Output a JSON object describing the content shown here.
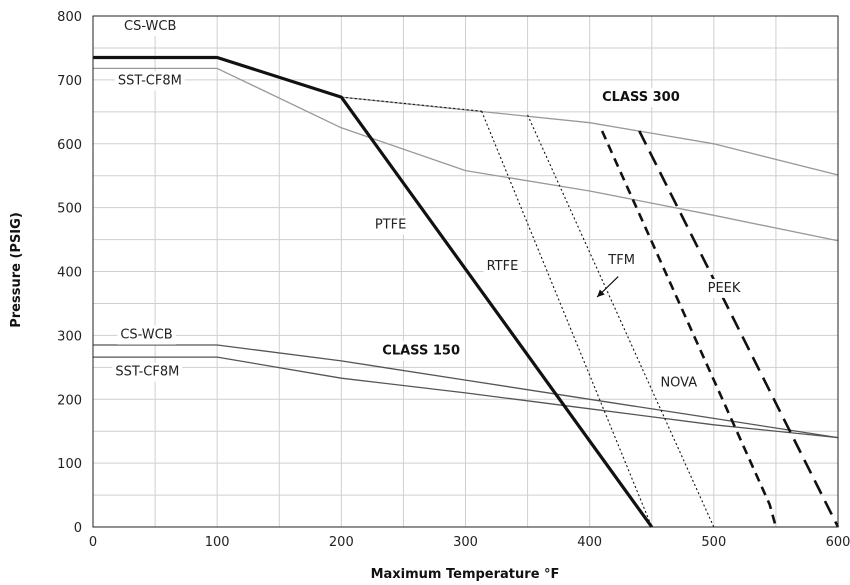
{
  "chart_data": {
    "type": "line",
    "xlabel": "Maximum Temperature °F",
    "ylabel": "Pressure (PSIG)",
    "xlim": [
      0,
      600
    ],
    "ylim": [
      0,
      800
    ],
    "xticks": [
      0,
      100,
      200,
      300,
      400,
      500,
      600
    ],
    "yticks": [
      0,
      100,
      200,
      300,
      400,
      500,
      600,
      700,
      800
    ],
    "grid": true,
    "series": [
      {
        "name": "CS-WCB",
        "group": "CLASS 300",
        "style": "solid-thin",
        "color": "#999999",
        "x": [
          0,
          100,
          200,
          400,
          500,
          600
        ],
        "y": [
          735,
          735,
          673,
          633,
          600,
          551
        ]
      },
      {
        "name": "SST-CF8M",
        "group": "CLASS 300",
        "style": "solid-thin",
        "color": "#999999",
        "x": [
          0,
          100,
          200,
          300,
          400,
          500,
          600
        ],
        "y": [
          718,
          718,
          625,
          558,
          526,
          488,
          448
        ]
      },
      {
        "name": "CS-WCB",
        "group": "CLASS 150",
        "style": "solid-thin",
        "color": "#555555",
        "x": [
          0,
          100,
          200,
          300,
          400,
          500,
          600
        ],
        "y": [
          285,
          285,
          260,
          230,
          200,
          170,
          140
        ]
      },
      {
        "name": "SST-CF8M",
        "group": "CLASS 150",
        "style": "solid-thin",
        "color": "#555555",
        "x": [
          0,
          100,
          200,
          300,
          400,
          500,
          600
        ],
        "y": [
          266,
          266,
          233,
          210,
          185,
          160,
          140
        ]
      },
      {
        "name": "PTFE",
        "style": "solid-thick",
        "color": "#111111",
        "x": [
          0,
          100,
          200,
          450
        ],
        "y": [
          735,
          735,
          673,
          0
        ]
      },
      {
        "name": "",
        "style": "dotted",
        "color": "#111111",
        "x": [
          200,
          313
        ],
        "y": [
          673,
          651
        ]
      },
      {
        "name": "RTFE",
        "style": "dotted",
        "color": "#111111",
        "x": [
          313,
          450
        ],
        "y": [
          651,
          0
        ]
      },
      {
        "name": "NOVA",
        "style": "dotted",
        "color": "#111111",
        "x": [
          350,
          500
        ],
        "y": [
          645,
          0
        ]
      },
      {
        "name": "TFM",
        "style": "dashed",
        "color": "#111111",
        "x": [
          410,
          545,
          550,
          550
        ],
        "y": [
          620,
          35,
          0,
          0
        ]
      },
      {
        "name": "PEEK",
        "style": "long-dashed",
        "color": "#111111",
        "x": [
          440,
          600
        ],
        "y": [
          620,
          0
        ]
      }
    ],
    "annotations": [
      {
        "text": "CS-WCB",
        "x": 25,
        "y": 778
      },
      {
        "text": "SST-CF8M",
        "x": 20,
        "y": 693
      },
      {
        "text": "CLASS 300",
        "x": 410,
        "y": 667,
        "bold": true
      },
      {
        "text": "PTFE",
        "x": 227,
        "y": 467
      },
      {
        "text": "RTFE",
        "x": 317,
        "y": 402
      },
      {
        "text": "TFM",
        "x": 415,
        "y": 412
      },
      {
        "text": "PEEK",
        "x": 495,
        "y": 368
      },
      {
        "text": "CS-WCB",
        "x": 22,
        "y": 295
      },
      {
        "text": "CLASS 150",
        "x": 233,
        "y": 270,
        "bold": true
      },
      {
        "text": "SST-CF8M",
        "x": 18,
        "y": 237
      },
      {
        "text": "NOVA",
        "x": 457,
        "y": 220
      }
    ]
  }
}
